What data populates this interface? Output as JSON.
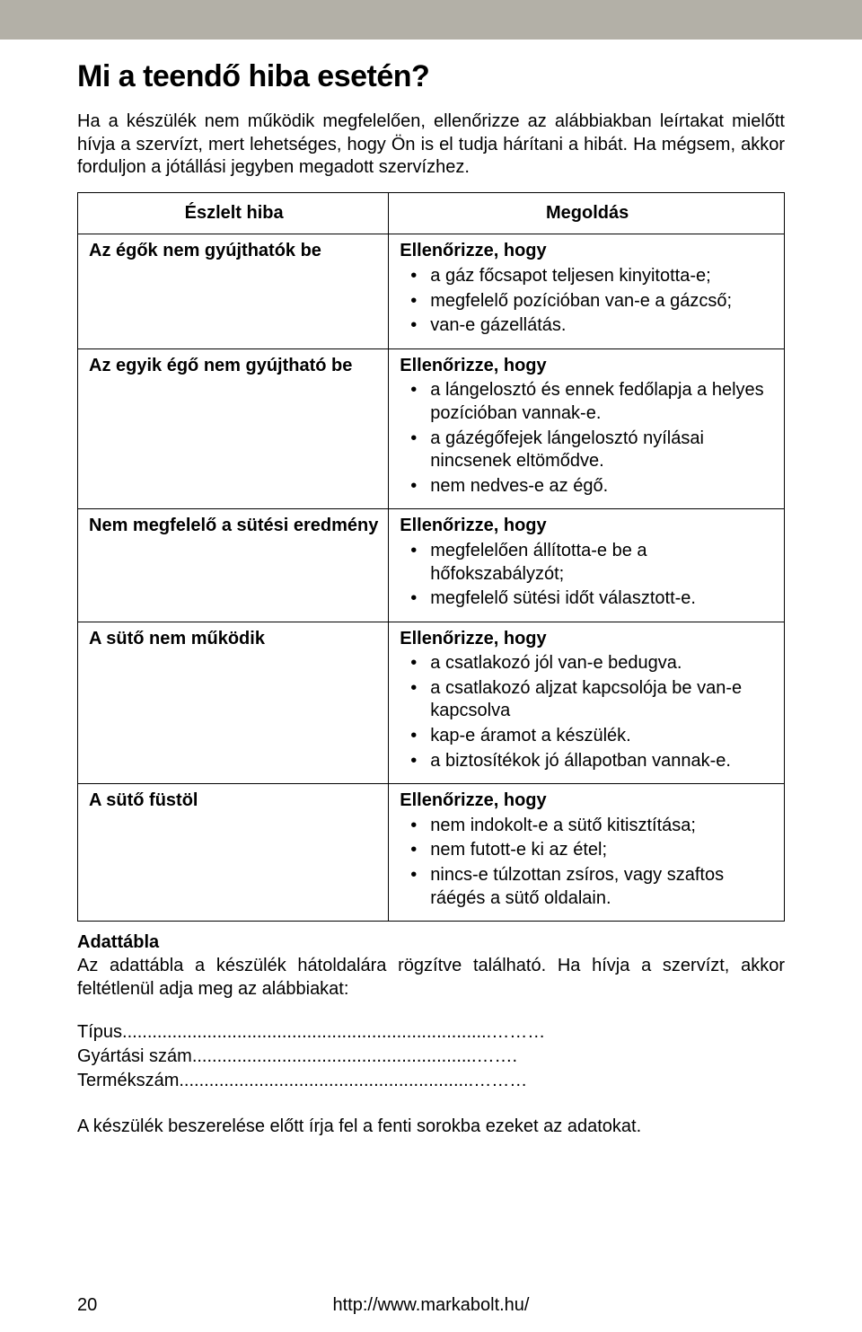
{
  "colors": {
    "top_bar": "#b3b0a7",
    "text": "#000000",
    "background": "#ffffff",
    "table_border": "#000000"
  },
  "typography": {
    "body_font": "Arial",
    "body_size_pt": 15,
    "title_size_pt": 26,
    "title_weight": "800"
  },
  "title": "Mi a teendő hiba esetén?",
  "intro": "Ha a készülék nem működik megfelelően, ellenőrizze az alábbiakban leírtakat mielőtt hívja a szervízt, mert lehetséges, hogy Ön is el tudja hárítani a hibát. Ha mégsem, akkor forduljon a jótállási jegyben megadott szervízhez.",
  "table": {
    "type": "table",
    "column_widths_pct": [
      44,
      56
    ],
    "headers": [
      "Észlelt hiba",
      "Megoldás"
    ],
    "rows": [
      {
        "fault": "Az égők nem gyújthatók be",
        "check_label": "Ellenőrizze, hogy",
        "items": [
          "a gáz főcsapot teljesen kinyitotta-e;",
          "megfelelő pozícióban van-e a gázcső;",
          "van-e gázellátás."
        ]
      },
      {
        "fault": "Az egyik égő nem gyújtható be",
        "check_label": "Ellenőrizze, hogy",
        "items": [
          "a lángelosztó és ennek fedőlapja a helyes pozícióban vannak-e.",
          "a gázégőfejek lángelosztó nyílásai nincsenek eltömődve.",
          "nem nedves-e az égő."
        ]
      },
      {
        "fault": "Nem megfelelő a sütési eredmény",
        "check_label": "Ellenőrizze, hogy",
        "items": [
          "megfelelően állította-e be a hőfokszabályzót;",
          "megfelelő sütési időt választott-e."
        ]
      },
      {
        "fault": "A sütő nem működik",
        "check_label": "Ellenőrizze, hogy",
        "items": [
          "a csatlakozó jól van-e bedugva.",
          "a csatlakozó aljzat kapcsolója be van-e kapcsolva",
          "kap-e áramot a készülék.",
          "a biztosítékok jó állapotban vannak-e."
        ]
      },
      {
        "fault": "A sütő füstöl",
        "check_label": "Ellenőrizze, hogy",
        "items": [
          "nem indokolt-e a sütő kitisztítása;",
          "nem futott-e ki az étel;",
          "nincs-e túlzottan zsíros, vagy szaftos ráégés a sütő oldalain."
        ]
      }
    ]
  },
  "data_plate": {
    "heading": "Adattábla",
    "text": "Az adattábla a készülék hátoldalára rögzítve található. Ha hívja a szervízt, akkor feltétlenül adja meg az alábbiakat:"
  },
  "fill_lines": [
    {
      "label": "Típus",
      "dots": "..........................................................................………"
    },
    {
      "label": "Gyártási szám",
      "dots": ".........................................................……."
    },
    {
      "label": "Termékszám",
      "dots": "...........................................................………"
    }
  ],
  "final_note": "A készülék beszerelése előtt írja fel a fenti sorokba ezeket az adatokat.",
  "footer": {
    "page_number": "20",
    "url": "http://www.markabolt.hu/"
  }
}
